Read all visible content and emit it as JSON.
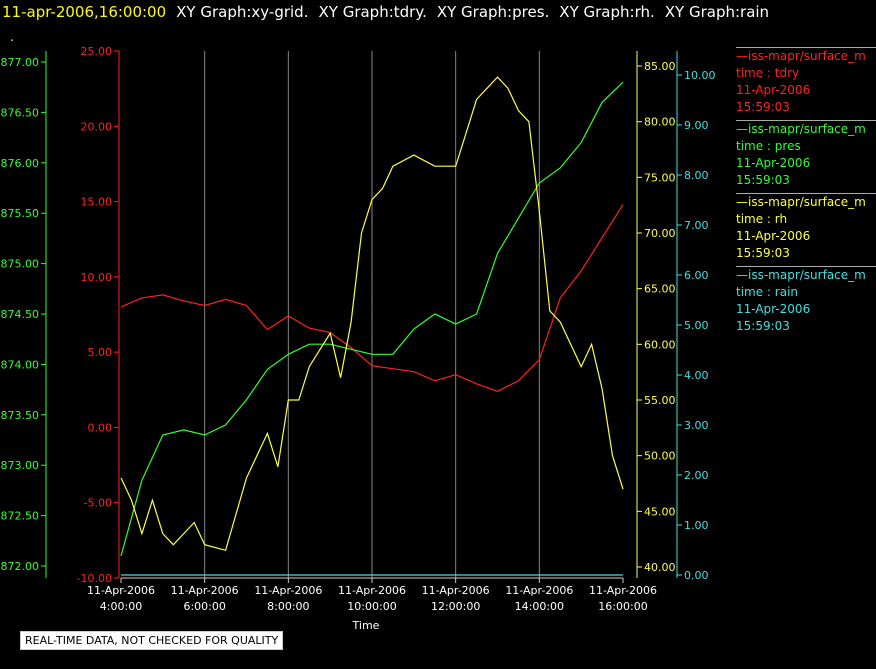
{
  "header": {
    "timestamp": "11-apr-2006,16:00:00",
    "graphs": [
      "XY Graph:xy-grid.",
      "XY Graph:tdry.",
      "XY Graph:pres.",
      "XY Graph:rh.",
      "XY Graph:rain"
    ]
  },
  "dot": ".",
  "notice": "REAL-TIME DATA, NOT CHECKED FOR QUALITY",
  "legend": [
    {
      "line": "—iss-mapr/surface_m",
      "field": "time : tdry",
      "date": "11-Apr-2006",
      "time": "15:59:03",
      "color": "#ff2020"
    },
    {
      "line": "—iss-mapr/surface_m",
      "field": "time : pres",
      "date": "11-Apr-2006",
      "time": "15:59:03",
      "color": "#30ff30"
    },
    {
      "line": "—iss-mapr/surface_m",
      "field": "time : rh",
      "date": "11-Apr-2006",
      "time": "15:59:03",
      "color": "#ffff40"
    },
    {
      "line": "—iss-mapr/surface_m",
      "field": "time : rain",
      "date": "11-Apr-2006",
      "time": "15:59:03",
      "color": "#40e0e0"
    }
  ],
  "chart_data": {
    "type": "line",
    "xlabel": "Time",
    "x_ticks": [
      {
        "date": "11-Apr-2006",
        "time": "4:00:00"
      },
      {
        "date": "11-Apr-2006",
        "time": "6:00:00"
      },
      {
        "date": "11-Apr-2006",
        "time": "8:00:00"
      },
      {
        "date": "11-Apr-2006",
        "time": "10:00:00"
      },
      {
        "date": "11-Apr-2006",
        "time": "12:00:00"
      },
      {
        "date": "11-Apr-2006",
        "time": "14:00:00"
      },
      {
        "date": "11-Apr-2006",
        "time": "16:00:00"
      }
    ],
    "x_range_hours": [
      4,
      16
    ],
    "grid": true,
    "axes": {
      "pres": {
        "color": "#30ff30",
        "range": [
          872,
          877
        ],
        "ticks": [
          "872.00",
          "872.50",
          "873.00",
          "873.50",
          "874.00",
          "874.50",
          "875.00",
          "875.50",
          "876.00",
          "876.50",
          "877.00"
        ]
      },
      "tdry": {
        "color": "#ff2020",
        "range": [
          -10,
          25
        ],
        "ticks": [
          "-10.00",
          "-5.00",
          "0.00",
          "5.00",
          "10.00",
          "15.00",
          "20.00",
          "25.00"
        ]
      },
      "rh": {
        "color": "#ffff40",
        "range": [
          40,
          85
        ],
        "ticks": [
          "40.00",
          "45.00",
          "50.00",
          "55.00",
          "60.00",
          "65.00",
          "70.00",
          "75.00",
          "80.00",
          "85.00"
        ]
      },
      "rain": {
        "color": "#40e0e0",
        "range": [
          0,
          10
        ],
        "ticks": [
          "0.00",
          "1.00",
          "2.00",
          "3.00",
          "4.00",
          "5.00",
          "6.00",
          "7.00",
          "8.00",
          "9.00",
          "10.00"
        ]
      }
    },
    "series": [
      {
        "axis": "tdry",
        "color": "#ff2020",
        "x": [
          4,
          4.5,
          5,
          5.5,
          6,
          6.5,
          7,
          7.5,
          8,
          8.5,
          9,
          9.5,
          10,
          10.5,
          11,
          11.5,
          12,
          12.5,
          13,
          13.5,
          14,
          14.5,
          15,
          15.5,
          16
        ],
        "y": [
          8.0,
          8.6,
          8.8,
          8.4,
          8.1,
          8.5,
          8.1,
          6.5,
          7.4,
          6.6,
          6.3,
          5.3,
          4.1,
          3.9,
          3.7,
          3.1,
          3.5,
          2.9,
          2.4,
          3.1,
          4.5,
          8.6,
          10.4,
          12.6,
          14.8
        ]
      },
      {
        "axis": "pres",
        "color": "#30ff30",
        "x": [
          4,
          4.5,
          5,
          5.5,
          6,
          6.5,
          7,
          7.5,
          8,
          8.5,
          9,
          9.5,
          10,
          10.5,
          11,
          11.5,
          12,
          12.5,
          13,
          13.5,
          14,
          14.5,
          15,
          15.5,
          16
        ],
        "y": [
          872.1,
          872.85,
          873.3,
          873.35,
          873.3,
          873.4,
          873.65,
          873.95,
          874.1,
          874.2,
          874.2,
          874.15,
          874.1,
          874.1,
          874.35,
          874.5,
          874.4,
          874.5,
          875.1,
          875.45,
          875.8,
          875.95,
          876.2,
          876.6,
          876.8
        ]
      },
      {
        "axis": "rh",
        "color": "#ffff40",
        "x": [
          4,
          4.25,
          4.5,
          4.75,
          5,
          5.25,
          5.5,
          5.75,
          6,
          6.5,
          7,
          7.5,
          7.75,
          8,
          8.25,
          8.5,
          9,
          9.25,
          9.5,
          9.75,
          10,
          10.25,
          10.5,
          11,
          11.5,
          12,
          12.5,
          12.75,
          13,
          13.25,
          13.5,
          13.75,
          14,
          14.25,
          14.5,
          14.75,
          15,
          15.25,
          15.5,
          15.75,
          16
        ],
        "y": [
          48,
          46,
          43,
          46,
          43,
          42,
          43,
          44,
          42,
          41.5,
          48,
          52,
          49,
          55,
          55,
          58,
          61,
          57,
          62,
          70,
          73,
          74,
          76,
          77,
          76,
          76,
          82,
          83,
          84,
          83,
          81,
          80,
          72,
          63,
          62,
          60,
          58,
          60,
          56,
          50,
          47
        ]
      },
      {
        "axis": "rain",
        "color": "#40e0e0",
        "x": [
          4,
          16
        ],
        "y": [
          0,
          0
        ]
      }
    ]
  }
}
